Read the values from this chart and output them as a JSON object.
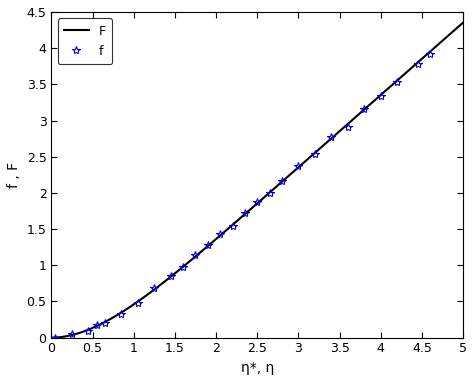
{
  "title": "",
  "xlabel": "η*, η",
  "ylabel": "f , F",
  "xlim": [
    0,
    5
  ],
  "ylim": [
    0,
    4.5
  ],
  "xticks": [
    0,
    0.5,
    1,
    1.5,
    2,
    2.5,
    3,
    3.5,
    4,
    4.5,
    5
  ],
  "yticks": [
    0,
    0.5,
    1,
    1.5,
    2,
    2.5,
    3,
    3.5,
    4,
    4.5
  ],
  "line_color": "#000000",
  "marker_color": "#0000EE",
  "legend_F": "F",
  "legend_f": "f",
  "scatter_x": [
    0.05,
    0.25,
    0.45,
    0.55,
    0.65,
    0.85,
    1.05,
    1.25,
    1.45,
    1.6,
    1.75,
    1.9,
    2.05,
    2.2,
    2.35,
    2.5,
    2.65,
    2.8,
    3.0,
    3.2,
    3.4,
    3.6,
    3.8,
    4.0,
    4.2,
    4.45,
    4.6
  ],
  "background_color": "#ffffff",
  "figwidth": 4.74,
  "figheight": 3.82,
  "dpi": 100
}
